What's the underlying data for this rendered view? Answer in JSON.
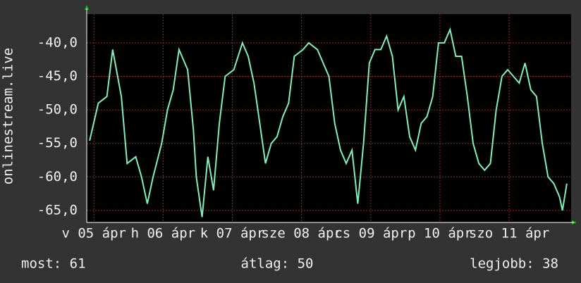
{
  "chart_data": {
    "type": "line",
    "y_label": "onlinestream.live",
    "x": [
      1,
      4,
      7,
      9,
      12,
      14,
      17,
      19,
      21,
      23,
      26,
      28,
      30,
      32,
      35,
      37,
      38,
      40,
      42,
      44,
      46,
      48,
      51,
      54,
      56,
      58,
      60,
      62,
      64,
      66,
      68,
      70,
      72,
      75,
      77,
      80,
      82,
      84,
      86,
      88,
      90,
      92,
      94,
      96,
      98,
      100,
      102,
      104,
      106,
      108,
      110,
      112,
      114,
      116,
      118,
      120,
      122,
      124,
      126,
      128,
      130,
      132,
      134,
      136,
      138,
      140,
      142,
      144,
      146,
      148,
      150,
      152,
      154,
      156,
      158,
      160,
      162,
      164,
      165,
      166.5
    ],
    "series": [
      {
        "color": "#80f0b8",
        "values": [
          -54.6,
          -49,
          -48,
          -41,
          -48,
          -58,
          -57,
          -60,
          -64,
          -60,
          -55,
          -50,
          -47,
          -41,
          -44,
          -53,
          -60,
          -66,
          -57,
          -62,
          -52,
          -45,
          -44,
          -40,
          -42,
          -46,
          -52,
          -58,
          -55,
          -54,
          -51,
          -49,
          -42,
          -41,
          -40,
          -41,
          -43,
          -45,
          -52,
          -56,
          -58,
          -56,
          -64,
          -55,
          -43,
          -41,
          -41,
          -39,
          -42,
          -50,
          -48,
          -54,
          -56,
          -52,
          -51,
          -48,
          -40,
          -40,
          -38,
          -42,
          -42,
          -48,
          -55,
          -58,
          -59,
          -58,
          -50,
          -45,
          -44,
          -45,
          -46,
          -43,
          -47,
          -48,
          -55,
          -60,
          -61,
          -63,
          -65,
          -61
        ]
      }
    ],
    "xlim": [
      0,
      168
    ],
    "xticks": [
      {
        "value": 2.5,
        "label": "v 05 ápr"
      },
      {
        "value": 26.5,
        "label": "h 06 ápr"
      },
      {
        "value": 50.5,
        "label": "k 07 ápr"
      },
      {
        "value": 74.5,
        "label": "sze 08 ápr"
      },
      {
        "value": 98.5,
        "label": "cs 09 ápr"
      },
      {
        "value": 122.5,
        "label": "p 10 ápr"
      },
      {
        "value": 146.5,
        "label": "szo 11 ápr"
      }
    ],
    "ylim": [
      -66.8,
      -35.7
    ],
    "yticks": [
      {
        "value": -65,
        "label": "-65,0"
      },
      {
        "value": -60,
        "label": "-60,0"
      },
      {
        "value": -55,
        "label": "-55,0"
      },
      {
        "value": -50,
        "label": "-50,0"
      },
      {
        "value": -45,
        "label": "-45,0"
      },
      {
        "value": -40,
        "label": "-40,0"
      }
    ],
    "grid": true,
    "stats": [
      "most: 61",
      "átlag: 50",
      "legjobb: 38"
    ]
  }
}
